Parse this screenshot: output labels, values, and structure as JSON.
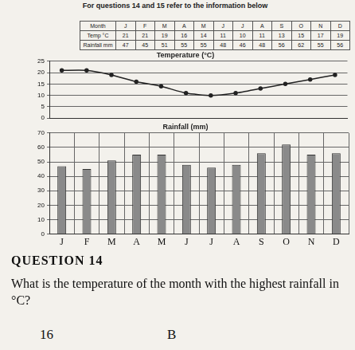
{
  "header": "For questions 14 and 15 refer to the information below",
  "table": {
    "rows": [
      [
        "Month",
        "J",
        "F",
        "M",
        "A",
        "M",
        "J",
        "J",
        "A",
        "S",
        "O",
        "N",
        "D"
      ],
      [
        "Temp °C",
        21,
        21,
        19,
        16,
        14,
        11,
        10,
        11,
        13,
        15,
        17,
        19
      ],
      [
        "Rainfall mm",
        47,
        45,
        51,
        55,
        55,
        48,
        46,
        48,
        56,
        62,
        55,
        56
      ]
    ]
  },
  "chart_data": [
    {
      "type": "line",
      "title": "Temperature (°C)",
      "categories": [
        "J",
        "F",
        "M",
        "A",
        "M",
        "J",
        "J",
        "A",
        "S",
        "O",
        "N",
        "D"
      ],
      "values": [
        21,
        21,
        19,
        16,
        14,
        11,
        10,
        11,
        13,
        15,
        17,
        19
      ],
      "color": "#222222",
      "marker": "circle",
      "ylim": [
        0,
        25
      ],
      "yticks": [
        0,
        5,
        10,
        15,
        20,
        25
      ],
      "grid": true,
      "tick_labels": "y"
    },
    {
      "type": "bar",
      "title": "Rainfall (mm)",
      "categories": [
        "J",
        "F",
        "M",
        "A",
        "M",
        "J",
        "J",
        "A",
        "S",
        "O",
        "N",
        "D"
      ],
      "values": [
        47,
        45,
        51,
        55,
        55,
        48,
        46,
        48,
        56,
        62,
        55,
        56
      ],
      "color": "#8a8a8a",
      "ylim": [
        0,
        70
      ],
      "yticks": [
        0,
        10,
        20,
        30,
        40,
        50,
        60,
        70
      ],
      "grid": true
    }
  ],
  "question": {
    "number": "QUESTION 14",
    "text": "What is the temperature of the month with the highest rainfall in °C?",
    "options": [
      "16",
      "B"
    ]
  }
}
